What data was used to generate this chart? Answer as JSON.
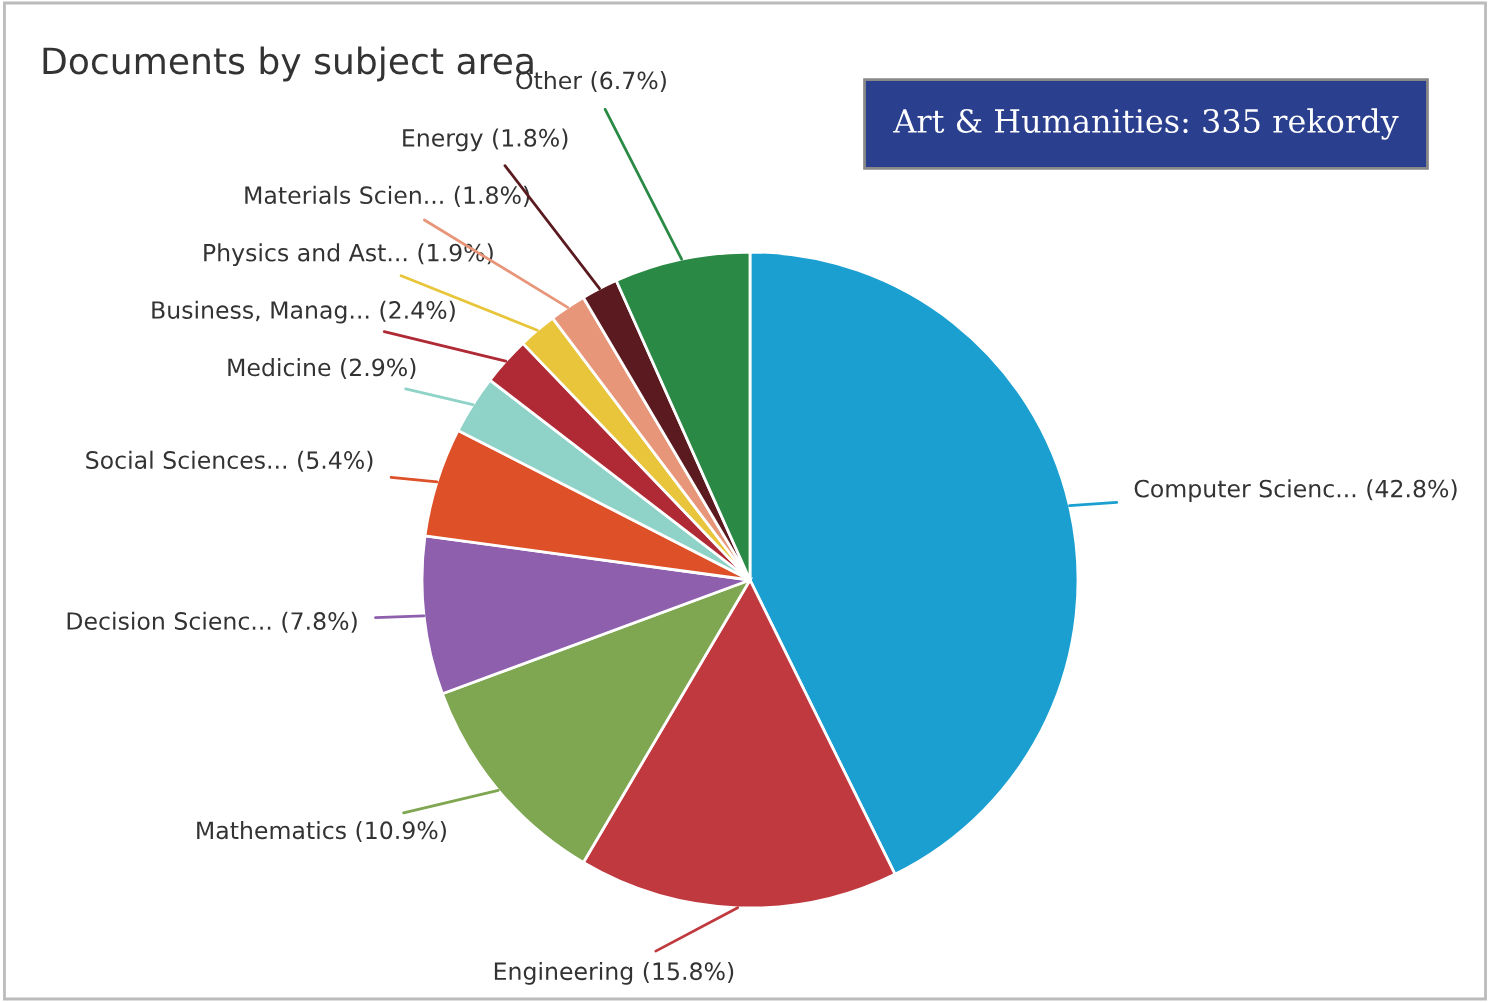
{
  "chart_data": {
    "type": "pie",
    "title": "Documents by subject area",
    "categories": [
      "Computer Scienc...",
      "Engineering",
      "Mathematics",
      "Decision Scienc...",
      "Social Sciences...",
      "Medicine",
      "Business, Manag...",
      "Physics and Ast...",
      "Materials Scien...",
      "Energy",
      "Other"
    ],
    "values": [
      42.8,
      15.8,
      10.9,
      7.8,
      5.4,
      2.9,
      2.4,
      1.9,
      1.8,
      1.8,
      6.7
    ],
    "value_labels": [
      "(42.8%)",
      "(15.8%)",
      "(10.9%)",
      "(7.8%)",
      "(5.4%)",
      "(2.9%)",
      "(2.4%)",
      "(1.9%)",
      "(1.8%)",
      "(1.8%)",
      "(6.7%)"
    ],
    "colors": [
      "#1a9fd0",
      "#c0393f",
      "#7fa650",
      "#8e5fad",
      "#dd5028",
      "#8fd3c8",
      "#b02a35",
      "#e8c53a",
      "#e8967a",
      "#5a1a1f",
      "#2a8a45"
    ],
    "annotations": [
      "Art & Humanities: 335 rekordy"
    ]
  }
}
